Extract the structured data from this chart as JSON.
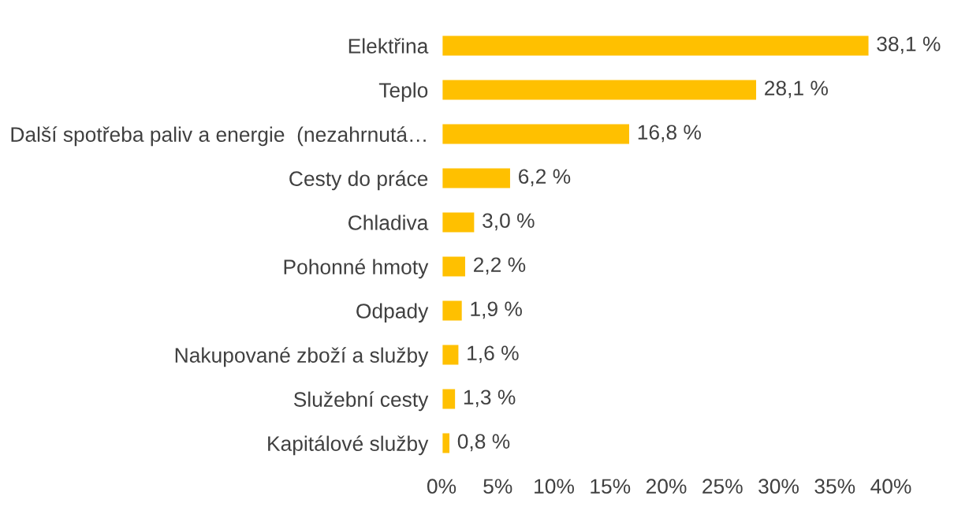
{
  "chart_data": {
    "type": "bar",
    "orientation": "horizontal",
    "categories": [
      "Elektřina",
      "Teplo",
      "Další spotřeba paliv a energie  (nezahrnutá…",
      "Cesty do práce",
      "Chladiva",
      "Pohonné hmoty",
      "Odpady",
      "Nakupované zboží a služby",
      "Služební cesty",
      "Kapitálové služby"
    ],
    "values": [
      38.1,
      28.1,
      16.8,
      6.2,
      3.0,
      2.2,
      1.9,
      1.6,
      1.3,
      0.8
    ],
    "value_labels": [
      "38,1 %",
      "28,1 %",
      "16,8 %",
      "6,2 %",
      "3,0 %",
      "2,2 %",
      "1,9 %",
      "1,6 %",
      "1,3 %",
      "0,8 %"
    ],
    "color": "#ffc000",
    "xlim": [
      0,
      40
    ],
    "xticks": [
      {
        "value": 0,
        "label": "0%"
      },
      {
        "value": 5,
        "label": "5%"
      },
      {
        "value": 10,
        "label": "10%"
      },
      {
        "value": 15,
        "label": "15%"
      },
      {
        "value": 20,
        "label": "20%"
      },
      {
        "value": 25,
        "label": "25%"
      },
      {
        "value": 30,
        "label": "30%"
      },
      {
        "value": 35,
        "label": "35%"
      },
      {
        "value": 40,
        "label": "40%"
      }
    ],
    "grid": false,
    "legend": false
  }
}
